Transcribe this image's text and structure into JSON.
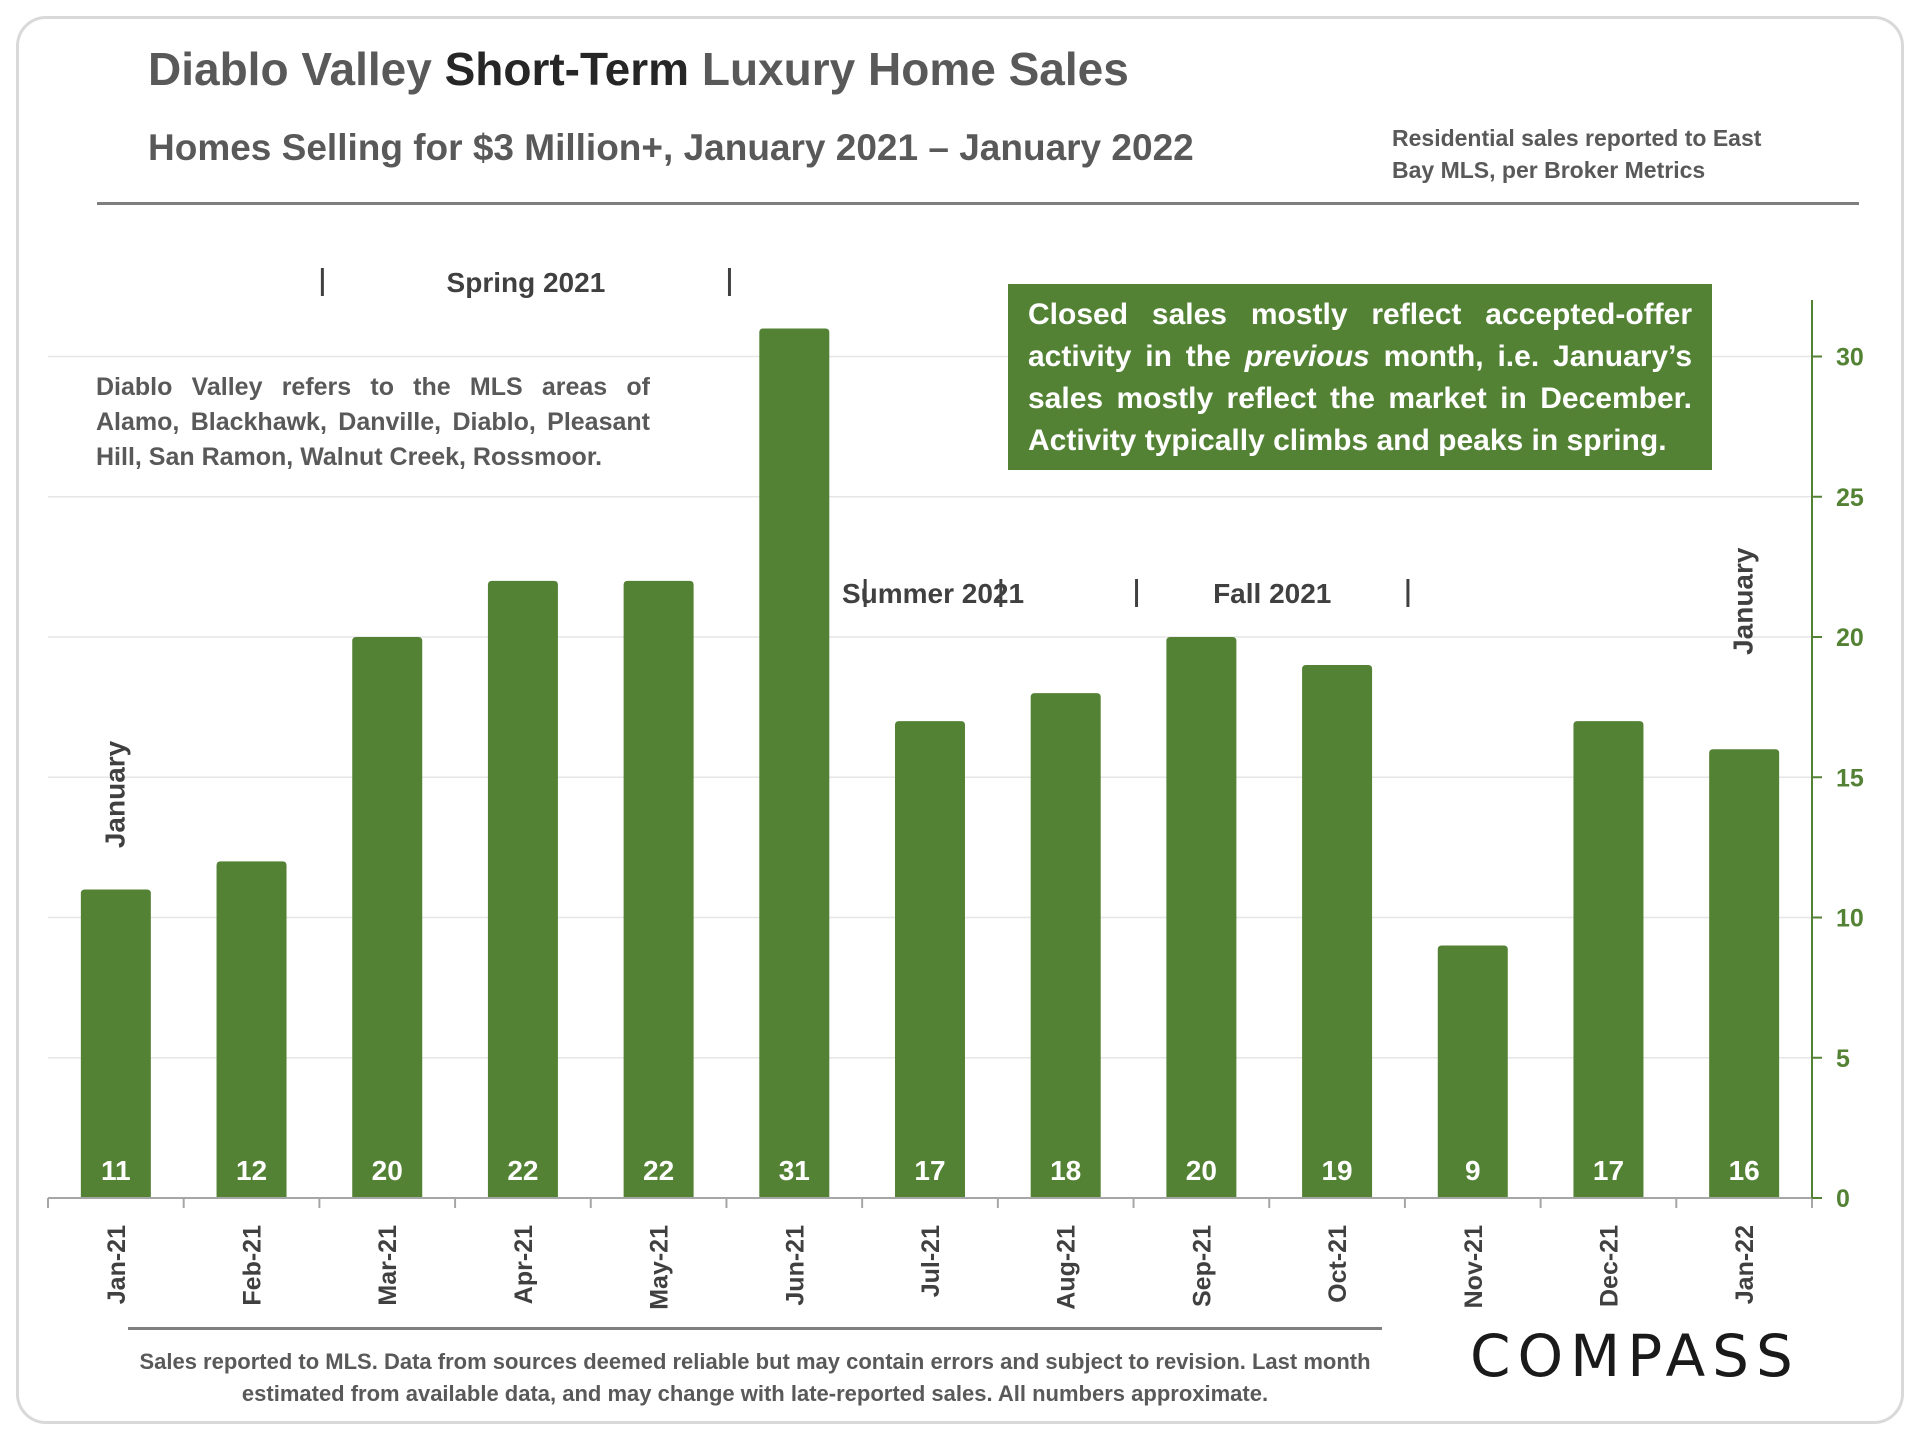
{
  "header": {
    "title_part1": "Diablo Valley ",
    "title_part2": "Short-Term",
    "title_part3": " Luxury Home Sales",
    "subtitle": "Homes Selling for $3 Million+, January 2021 – January 2022",
    "source": "Residential sales reported to East Bay MLS, per Broker Metrics"
  },
  "notes": {
    "areas": "Diablo Valley refers to the MLS areas of Alamo, Blackhawk, Danville, Diablo, Pleasant Hill, San Ramon, Walnut Creek, Rossmoor.",
    "box_part1": "Closed sales mostly reflect accepted-offer activity in the ",
    "box_italic": "previous",
    "box_part2": " month, i.e. January’s sales mostly reflect the market in December. Activity typically climbs and peaks in spring."
  },
  "chart_data": {
    "type": "bar",
    "title": "Diablo Valley Short-Term Luxury Home Sales",
    "categories": [
      "Jan-21",
      "Feb-21",
      "Mar-21",
      "Apr-21",
      "May-21",
      "Jun-21",
      "Jul-21",
      "Aug-21",
      "Sep-21",
      "Oct-21",
      "Nov-21",
      "Dec-21",
      "Jan-22"
    ],
    "values": [
      11,
      12,
      20,
      22,
      22,
      31,
      17,
      18,
      20,
      19,
      9,
      17,
      16
    ],
    "ylim": [
      0,
      32
    ],
    "y_ticks": [
      0,
      5,
      10,
      15,
      20,
      25,
      30
    ],
    "y_axis_side": "right",
    "gridlines": true,
    "season_labels": [
      {
        "label": "Spring 2021",
        "from_index": 2,
        "to_index": 5
      },
      {
        "label": "Summer 2021",
        "from_index": 6,
        "to_index": 7
      },
      {
        "label": "Fall 2021",
        "from_index": 8,
        "to_index": 10
      }
    ],
    "month_annotations": [
      {
        "label": "January",
        "index": 0
      },
      {
        "label": "January",
        "index": 12
      }
    ],
    "bar_color": "#548235",
    "axis_color": "#548235"
  },
  "footer": {
    "note": "Sales reported to MLS. Data from sources deemed reliable but may contain errors and subject to revision.  Last month estimated from available data, and may change with late-reported sales. All numbers approximate.",
    "logo": "COMPASS"
  }
}
